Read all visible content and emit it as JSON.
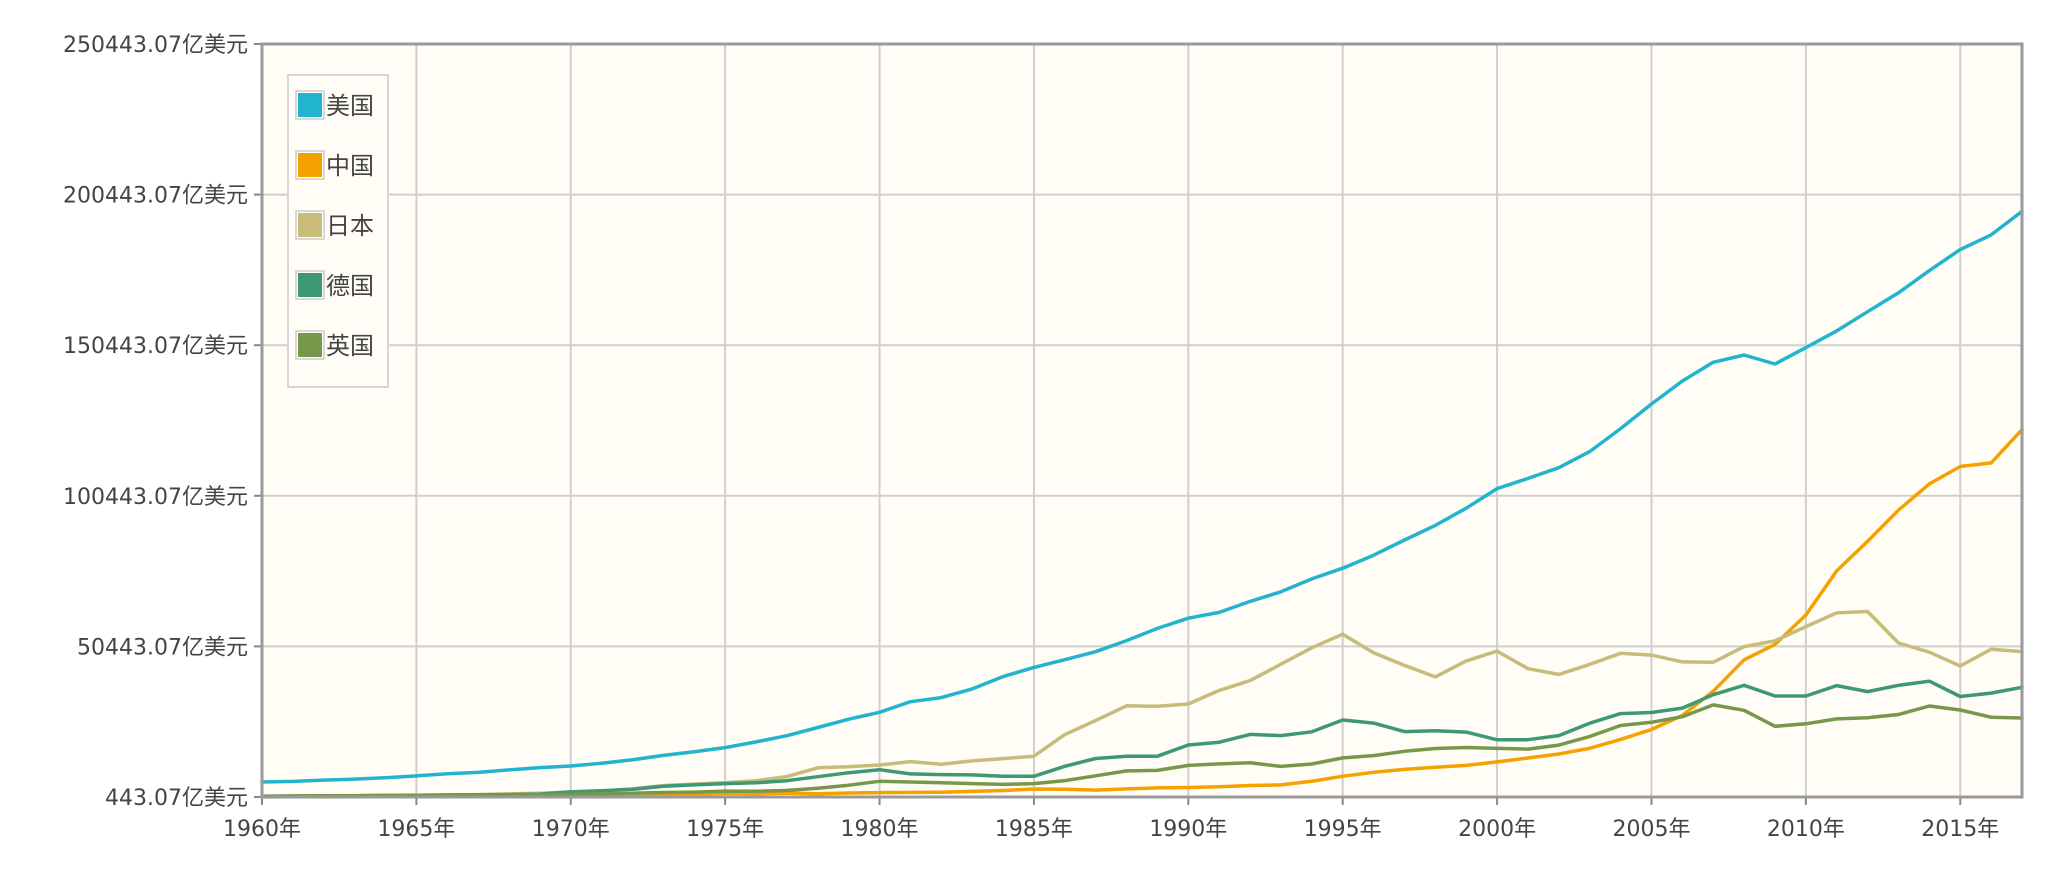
{
  "chart_data": {
    "type": "line",
    "title": "",
    "xlabel": "",
    "ylabel": "",
    "xlim": [
      1960,
      2017
    ],
    "ylim": [
      443.07,
      250443.07
    ],
    "grid": true,
    "legend_position": "top-left",
    "background_color": "#fffdf6",
    "y_ticks": [
      "443.07亿美元",
      "50443.07亿美元",
      "100443.07亿美元",
      "150443.07亿美元",
      "200443.07亿美元",
      "250443.07亿美元"
    ],
    "x_ticks": [
      "1960年",
      "1965年",
      "1970年",
      "1975年",
      "1980年",
      "1985年",
      "1990年",
      "1995年",
      "2000年",
      "2005年",
      "2010年",
      "2015年"
    ],
    "x": [
      1960,
      1961,
      1962,
      1963,
      1964,
      1965,
      1966,
      1967,
      1968,
      1969,
      1970,
      1971,
      1972,
      1973,
      1974,
      1975,
      1976,
      1977,
      1978,
      1979,
      1980,
      1981,
      1982,
      1983,
      1984,
      1985,
      1986,
      1987,
      1988,
      1989,
      1990,
      1991,
      1992,
      1993,
      1994,
      1995,
      1996,
      1997,
      1998,
      1999,
      2000,
      2001,
      2002,
      2003,
      2004,
      2005,
      2006,
      2007,
      2008,
      2009,
      2010,
      2011,
      2012,
      2013,
      2014,
      2015,
      2016,
      2017
    ],
    "series": [
      {
        "name": "美国",
        "color": "#22b4cf",
        "values": [
          5433,
          5633,
          6050,
          6388,
          6860,
          7438,
          8152,
          8615,
          9429,
          10197,
          10734,
          11640,
          12795,
          14254,
          15449,
          16848,
          18734,
          20809,
          23518,
          26274,
          28574,
          32073,
          33439,
          36342,
          40408,
          43469,
          46032,
          48699,
          52367,
          56412,
          59796,
          61741,
          65393,
          68578,
          72870,
          76399,
          80732,
          85773,
          90627,
          96311,
          102848,
          106218,
          109775,
          115108,
          122750,
          130937,
          138559,
          144776,
          147186,
          144187,
          149644,
          155179,
          161553,
          167848,
          175217,
          182193,
          187072,
          194854
        ]
      },
      {
        "name": "中国",
        "color": "#f5a100",
        "values": [
          597,
          500,
          472,
          507,
          594,
          704,
          767,
          727,
          708,
          797,
          926,
          999,
          1136,
          1385,
          1442,
          1630,
          1539,
          1749,
          1495,
          1783,
          1911,
          1956,
          2050,
          2305,
          2599,
          3094,
          3008,
          2729,
          3123,
          3477,
          3609,
          3834,
          4269,
          4448,
          5643,
          7345,
          8637,
          9615,
          10292,
          10941,
          12113,
          13393,
          14705,
          16603,
          19553,
          22860,
          27521,
          35522,
          45982,
          51101,
          60872,
          75515,
          85322,
          95704,
          104385,
          110156,
          111375,
          122377
        ]
      },
      {
        "name": "日本",
        "color": "#c7bc7a",
        "values": [
          443,
          537,
          609,
          708,
          817,
          904,
          1059,
          1231,
          1469,
          1720,
          2126,
          2402,
          3128,
          4250,
          4717,
          5217,
          5865,
          7215,
          10136,
          10473,
          11055,
          12186,
          11344,
          12437,
          13187,
          13985,
          21148,
          25850,
          30713,
          30547,
          31329,
          35846,
          39089,
          44548,
          49986,
          54492,
          48337,
          44149,
          40327,
          45631,
          48875,
          43036,
          41151,
          44457,
          48151,
          47554,
          45303,
          45152,
          50379,
          52314,
          57001,
          61575,
          62032,
          51557,
          48504,
          43949,
          49495,
          48724
        ]
      },
      {
        "name": "德国",
        "color": "#3e9874",
        "values": [
          700,
          760,
          830,
          890,
          960,
          1050,
          1130,
          1160,
          1250,
          1390,
          2150,
          2490,
          2990,
          3980,
          4450,
          4900,
          5150,
          5860,
          7190,
          8520,
          9500,
          8110,
          7890,
          7790,
          7360,
          7320,
          10630,
          13220,
          14000,
          13990,
          17717,
          18648,
          21224,
          20839,
          22101,
          26013,
          24979,
          22171,
          22415,
          22006,
          19436,
          19460,
          20825,
          24958,
          28142,
          28507,
          29947,
          34399,
          37523,
          33975,
          33964,
          37444,
          35453,
          37529,
          38901,
          33811,
          34953,
          36849
        ]
      },
      {
        "name": "英国",
        "color": "#77984a",
        "values": [
          723,
          770,
          810,
          860,
          940,
          1010,
          1080,
          1110,
          1070,
          1160,
          1310,
          1480,
          1700,
          1930,
          2060,
          2410,
          2330,
          2630,
          3350,
          4360,
          5650,
          5430,
          5150,
          4890,
          4610,
          4890,
          5900,
          7470,
          9100,
          9260,
          10930,
          11430,
          11790,
          10610,
          11410,
          13440,
          14190,
          15600,
          16530,
          16870,
          16580,
          16330,
          17660,
          20520,
          24170,
          25250,
          27090,
          31020,
          29240,
          23930,
          24750,
          26370,
          26770,
          27830,
          30650,
          29320,
          26940,
          26660
        ]
      }
    ]
  }
}
